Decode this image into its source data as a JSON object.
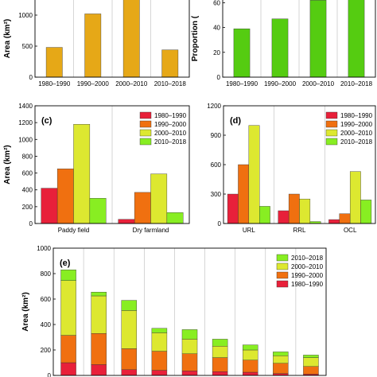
{
  "chart_data": [
    {
      "panel": "a",
      "type": "bar",
      "panel_label": "",
      "ylabel": "Area (km²)",
      "categories": [
        "1980–1990",
        "1990–2000",
        "2000–2010",
        "2010–2018"
      ],
      "values": [
        480,
        1020,
        1430,
        440
      ],
      "ylim": [
        0,
        1500
      ],
      "yticks": [
        0,
        500,
        1000
      ],
      "color": "#e6a817",
      "grid": "vertical separators"
    },
    {
      "panel": "b",
      "type": "bar",
      "panel_label": "",
      "ylabel": "Proportion (",
      "categories": [
        "1980–1990",
        "1990–2000",
        "2000–2010",
        "2010–2018"
      ],
      "values": [
        39,
        47,
        62,
        70
      ],
      "ylim": [
        0,
        75
      ],
      "yticks": [
        0,
        20,
        40,
        60
      ],
      "color": "#55cc11",
      "grid": "vertical separators"
    },
    {
      "panel": "c",
      "type": "bar",
      "panel_label": "(c)",
      "ylabel": "Area (km²)",
      "categories": [
        "Paddy field",
        "Dry farmland"
      ],
      "series": [
        {
          "name": "1980–1990",
          "values": [
            420,
            50
          ],
          "color": "#e8203a"
        },
        {
          "name": "1990–2000",
          "values": [
            650,
            370
          ],
          "color": "#f07010"
        },
        {
          "name": "2000–2010",
          "values": [
            1180,
            590
          ],
          "color": "#dde830"
        },
        {
          "name": "2010–2018",
          "values": [
            300,
            130
          ],
          "color": "#88ee22"
        }
      ],
      "ylim": [
        0,
        1400
      ],
      "yticks": [
        0,
        200,
        400,
        600,
        800,
        1000,
        1200,
        1400
      ],
      "legend": "top-right"
    },
    {
      "panel": "d",
      "type": "bar",
      "panel_label": "(d)",
      "ylabel": "",
      "categories": [
        "URL",
        "RRL",
        "OCL"
      ],
      "series": [
        {
          "name": "1980–1990",
          "values": [
            300,
            130,
            40
          ],
          "color": "#e8203a"
        },
        {
          "name": "1990–2000",
          "values": [
            600,
            300,
            100
          ],
          "color": "#f07010"
        },
        {
          "name": "2000–2010",
          "values": [
            1000,
            250,
            530
          ],
          "color": "#dde830"
        },
        {
          "name": "2010–2018",
          "values": [
            175,
            20,
            240
          ],
          "color": "#88ee22"
        }
      ],
      "ylim": [
        0,
        1200
      ],
      "yticks": [
        0,
        300,
        600,
        900,
        1200
      ],
      "legend": "top-right"
    },
    {
      "panel": "e",
      "type": "bar",
      "stacked": true,
      "panel_label": "(e)",
      "ylabel": "Area (km²)",
      "categories": [
        "",
        "",
        "",
        "",
        "",
        "",
        "",
        "",
        ""
      ],
      "series": [
        {
          "name": "1980–1990",
          "values": [
            100,
            85,
            45,
            40,
            35,
            30,
            25,
            15,
            10
          ],
          "color": "#e8203a"
        },
        {
          "name": "1990–2000",
          "values": [
            215,
            245,
            165,
            150,
            135,
            110,
            95,
            80,
            60
          ],
          "color": "#f07010"
        },
        {
          "name": "2000–2010",
          "values": [
            430,
            295,
            300,
            145,
            115,
            90,
            80,
            60,
            70
          ],
          "color": "#dde830"
        },
        {
          "name": "2010–2018",
          "values": [
            85,
            30,
            80,
            35,
            75,
            55,
            40,
            30,
            20
          ],
          "color": "#88ee22"
        }
      ],
      "ylim": [
        0,
        1000
      ],
      "yticks": [
        0,
        200,
        400,
        600,
        800,
        1000
      ],
      "legend": "top-right"
    }
  ]
}
